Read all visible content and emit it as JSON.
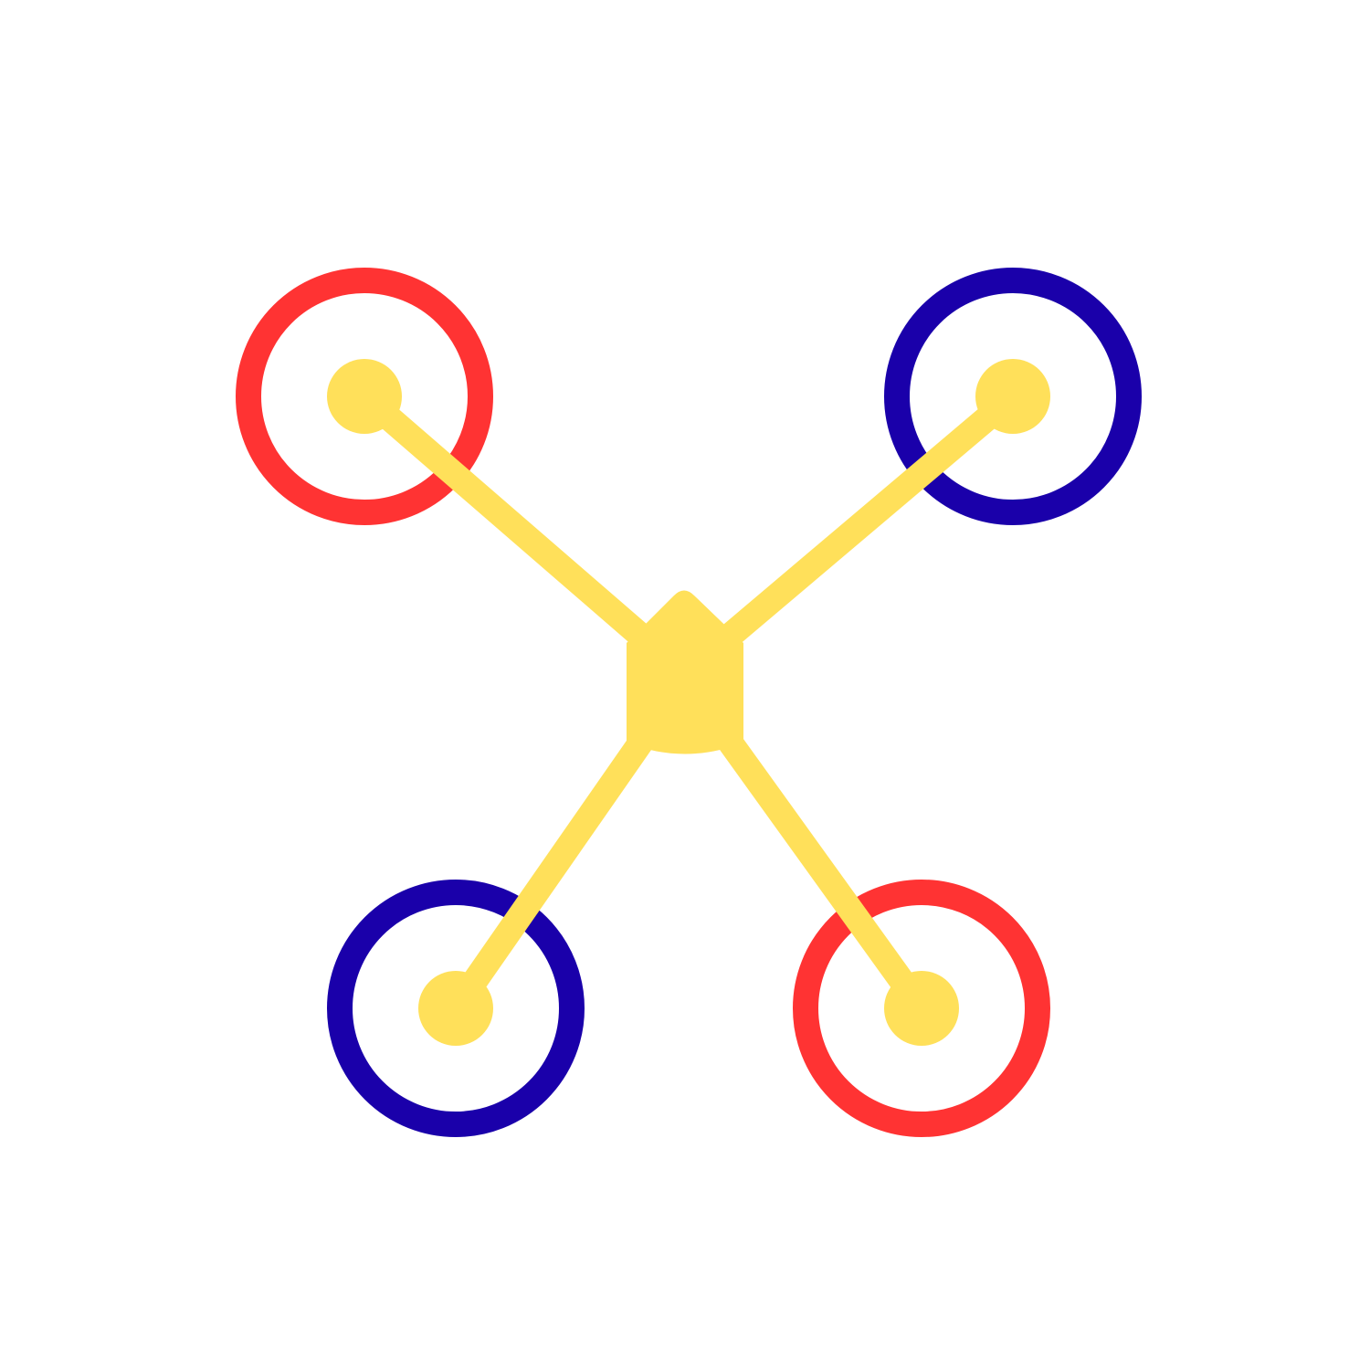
{
  "colors": {
    "background": "#ffffff",
    "frame": "#FFE05A",
    "rotor_clockwise": "#FF3333",
    "rotor_counterclockwise": "#1A00AA"
  },
  "icons": {
    "diagram": "quadcopter-icon",
    "body": "drone-body-icon",
    "arm": "drone-arm-icon",
    "rotor": "rotor-ring-icon",
    "motor": "motor-hub-icon"
  },
  "rotors": [
    {
      "name": "rotor-front-left",
      "color": "#FF3333"
    },
    {
      "name": "rotor-front-right",
      "color": "#1A00AA"
    },
    {
      "name": "rotor-rear-left",
      "color": "#1A00AA"
    },
    {
      "name": "rotor-rear-right",
      "color": "#FF3333"
    }
  ]
}
